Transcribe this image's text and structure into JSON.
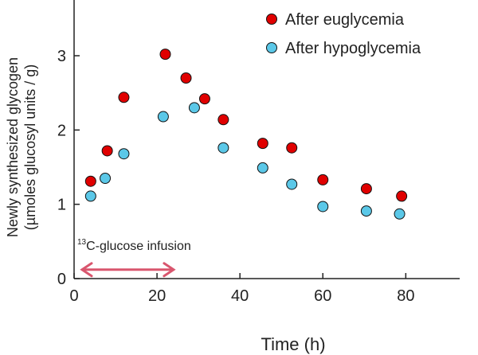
{
  "chart_data": {
    "type": "scatter",
    "title": "",
    "xlabel": "Time (h)",
    "ylabel_lines": [
      "Newly synthesized glycogen",
      "(µmoles glucosyl units / g)"
    ],
    "xlim": [
      0,
      93
    ],
    "ylim": [
      0,
      3.6
    ],
    "xticks": [
      0,
      20,
      40,
      60,
      80
    ],
    "yticks": [
      0,
      1,
      2,
      3
    ],
    "legend_position": "top-right",
    "series": [
      {
        "name": "After euglycemia",
        "color": "#e00000",
        "x": [
          4,
          8,
          12,
          22,
          27,
          31.5,
          36,
          45.5,
          52.5,
          60,
          70.5,
          79
        ],
        "y": [
          1.31,
          1.72,
          2.44,
          3.02,
          2.7,
          2.42,
          2.14,
          1.82,
          1.76,
          1.33,
          1.21,
          1.11
        ]
      },
      {
        "name": "After hypoglycemia",
        "color": "#5bc8e8",
        "x": [
          4,
          7.5,
          12,
          21.5,
          29,
          36,
          45.5,
          52.5,
          60,
          70.5,
          78.5
        ],
        "y": [
          1.11,
          1.35,
          1.68,
          2.18,
          2.3,
          1.76,
          1.49,
          1.27,
          0.97,
          0.91,
          0.87
        ]
      }
    ],
    "annotation": {
      "superscript": "13",
      "text": "C-glucose infusion",
      "x_range": [
        0,
        24
      ],
      "y": 0.12,
      "arrow_color": "#d9566e"
    }
  }
}
